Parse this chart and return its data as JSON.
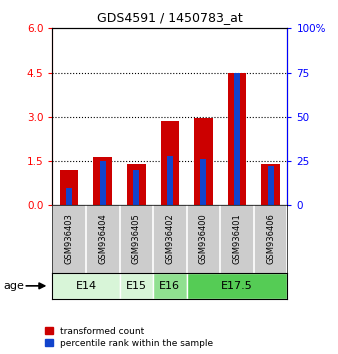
{
  "title": "GDS4591 / 1450783_at",
  "samples": [
    "GSM936403",
    "GSM936404",
    "GSM936405",
    "GSM936402",
    "GSM936400",
    "GSM936401",
    "GSM936406"
  ],
  "transformed_count": [
    1.2,
    1.65,
    1.4,
    2.85,
    2.95,
    4.5,
    1.4
  ],
  "percentile_rank_pct": [
    10,
    25,
    20,
    28,
    26,
    75,
    22
  ],
  "age_groups": [
    {
      "label": "E14",
      "start": 0,
      "end": 2,
      "color": "#d8f5d8"
    },
    {
      "label": "E15",
      "start": 2,
      "end": 3,
      "color": "#d8f5d8"
    },
    {
      "label": "E16",
      "start": 3,
      "end": 4,
      "color": "#90e090"
    },
    {
      "label": "E17.5",
      "start": 4,
      "end": 7,
      "color": "#55cc55"
    }
  ],
  "ylim_left": [
    0,
    6
  ],
  "ylim_right": [
    0,
    100
  ],
  "yticks_left": [
    0,
    1.5,
    3,
    4.5,
    6
  ],
  "yticks_right": [
    0,
    25,
    50,
    75,
    100
  ],
  "bar_color_red": "#cc0000",
  "bar_color_blue": "#1144cc",
  "background_color": "#ffffff",
  "legend_red": "transformed count",
  "legend_blue": "percentile rank within the sample",
  "age_label": "age"
}
